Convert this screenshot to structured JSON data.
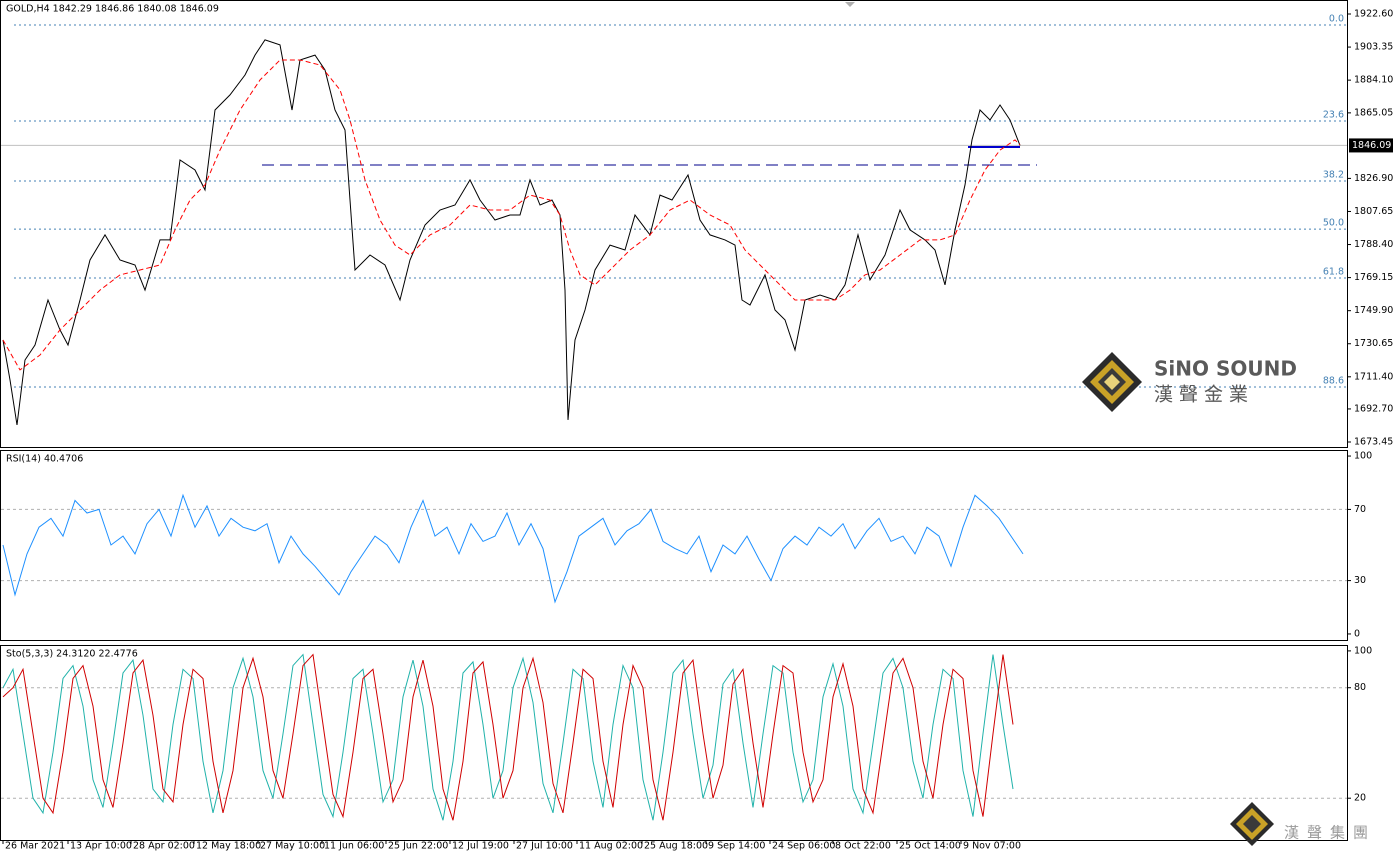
{
  "chart_data": [
    {
      "type": "line",
      "title": "GOLD,H4  1842.29 1846.86 1840.08 1846.09",
      "xlim": [
        0,
        1347
      ],
      "xticks": [
        {
          "value": 3,
          "label": "26 Mar 2021"
        },
        {
          "value": 68,
          "label": "13 Apr 10:00"
        },
        {
          "value": 131,
          "label": "28 Apr 02:00"
        },
        {
          "value": 194,
          "label": "12 May 18:00"
        },
        {
          "value": 258,
          "label": "27 May 10:00"
        },
        {
          "value": 322,
          "label": "11 Jun 06:00"
        },
        {
          "value": 386,
          "label": "25 Jun 22:00"
        },
        {
          "value": 450,
          "label": "12 Jul 19:00"
        },
        {
          "value": 514,
          "label": "27 Jul 10:00"
        },
        {
          "value": 577,
          "label": "11 Aug 02:00"
        },
        {
          "value": 642,
          "label": "25 Aug 18:00"
        },
        {
          "value": 706,
          "label": "9 Sep 14:00"
        },
        {
          "value": 770,
          "label": "24 Sep 06:00"
        },
        {
          "value": 833,
          "label": "8 Oct 22:00"
        },
        {
          "value": 897,
          "label": "25 Oct 14:00"
        },
        {
          "value": 961,
          "label": "9 Nov 07:00"
        }
      ],
      "ylim": [
        1670.54,
        1930.75
      ],
      "yticks": [
        {
          "value": 1922.6,
          "label": "1922.60"
        },
        1903.35,
        {
          "value": 1884.1,
          "label": "1884.10"
        },
        1865.05,
        {
          "value": 1826.9,
          "label": "1826.90"
        },
        1807.65,
        {
          "value": 1788.4,
          "label": "1788.40"
        },
        1769.15,
        {
          "value": 1749.9,
          "label": "1749.90"
        },
        1730.65,
        {
          "value": 1711.4,
          "label": "1711.40"
        },
        {
          "value": 1692.7,
          "label": "1692.70"
        },
        1673.45
      ],
      "current_price": 1846.09,
      "fib_levels": [
        {
          "label": "0.0",
          "value": 1916.2
        },
        {
          "label": "23.6",
          "value": 1860.3
        },
        {
          "label": "38.2",
          "value": 1825.4
        },
        {
          "label": "50.0",
          "value": 1797.4
        },
        {
          "label": "61.8",
          "value": 1768.9
        },
        {
          "label": "88.6",
          "value": 1705.5
        }
      ],
      "level_lines": [
        {
          "value": 1834.7,
          "x": [
            262,
            1037
          ],
          "color": "#00008b",
          "dash": true
        },
        {
          "value": 1845.2,
          "x": [
            968,
            1020
          ],
          "color": "#0000cd",
          "dash": false
        }
      ],
      "series": [
        {
          "color": "#000000",
          "dash": false,
          "x": [
            3,
            10,
            17,
            25,
            35,
            48,
            60,
            68,
            80,
            90,
            105,
            120,
            135,
            145,
            160,
            170,
            180,
            195,
            205,
            215,
            230,
            245,
            255,
            265,
            280,
            292,
            300,
            315,
            325,
            335,
            345,
            350,
            355,
            370,
            385,
            400,
            410,
            425,
            440,
            455,
            470,
            480,
            495,
            510,
            520,
            530,
            540,
            552,
            560,
            565,
            568,
            575,
            585,
            595,
            610,
            625,
            635,
            650,
            660,
            672,
            688,
            700,
            710,
            725,
            735,
            742,
            750,
            765,
            775,
            785,
            795,
            805,
            820,
            835,
            845,
            858,
            870,
            885,
            900,
            910,
            925,
            935,
            945,
            955,
            965,
            972,
            980,
            990,
            1000,
            1010,
            1020
          ],
          "values": [
            1732.8,
            1709.6,
            1683.4,
            1721.2,
            1729.9,
            1756.1,
            1738.7,
            1729.9,
            1756.1,
            1779.4,
            1794.0,
            1779.4,
            1776.5,
            1761.9,
            1791.1,
            1791.1,
            1837.6,
            1831.8,
            1820.2,
            1866.7,
            1875.5,
            1887.1,
            1898.7,
            1907.5,
            1904.6,
            1866.7,
            1895.8,
            1898.7,
            1890.0,
            1866.7,
            1855.1,
            1814.3,
            1773.6,
            1782.3,
            1776.5,
            1756.1,
            1779.4,
            1799.8,
            1808.5,
            1811.4,
            1826.0,
            1814.3,
            1802.7,
            1805.6,
            1805.6,
            1826.0,
            1811.4,
            1814.3,
            1805.6,
            1761.9,
            1686.3,
            1732.8,
            1750.3,
            1773.6,
            1788.1,
            1785.2,
            1805.6,
            1794.0,
            1817.2,
            1814.3,
            1828.9,
            1802.7,
            1794.0,
            1791.1,
            1788.1,
            1756.1,
            1753.2,
            1770.7,
            1750.3,
            1744.5,
            1727.0,
            1756.1,
            1759.0,
            1756.1,
            1764.9,
            1794.0,
            1767.8,
            1782.3,
            1808.5,
            1796.9,
            1791.1,
            1785.2,
            1764.9,
            1796.9,
            1823.1,
            1849.3,
            1866.7,
            1860.9,
            1869.6,
            1860.9,
            1846.09
          ]
        },
        {
          "color": "#ff0000",
          "dash": true,
          "x": [
            3,
            20,
            40,
            60,
            80,
            100,
            120,
            140,
            160,
            175,
            190,
            205,
            220,
            240,
            260,
            280,
            300,
            320,
            340,
            350,
            365,
            380,
            395,
            410,
            430,
            450,
            470,
            490,
            510,
            530,
            550,
            560,
            570,
            580,
            595,
            610,
            630,
            650,
            670,
            690,
            710,
            730,
            745,
            760,
            780,
            795,
            815,
            835,
            850,
            865,
            880,
            900,
            920,
            940,
            955,
            970,
            985,
            1000,
            1015,
            1020
          ],
          "values": [
            1732.8,
            1715.4,
            1724.1,
            1738.7,
            1750.3,
            1761.9,
            1770.7,
            1773.6,
            1776.5,
            1796.9,
            1814.3,
            1823.1,
            1843.4,
            1866.7,
            1884.2,
            1895.8,
            1895.8,
            1892.9,
            1878.4,
            1860.9,
            1826.0,
            1802.7,
            1788.1,
            1782.3,
            1794.0,
            1799.8,
            1811.4,
            1808.5,
            1808.5,
            1817.2,
            1814.3,
            1805.6,
            1785.2,
            1770.7,
            1764.9,
            1773.6,
            1785.2,
            1794.0,
            1808.5,
            1814.3,
            1805.6,
            1799.8,
            1785.2,
            1776.5,
            1764.9,
            1756.1,
            1756.1,
            1756.1,
            1761.9,
            1770.7,
            1773.6,
            1782.3,
            1791.1,
            1791.1,
            1794.0,
            1814.3,
            1831.8,
            1843.4,
            1849.3,
            1846.4
          ]
        }
      ]
    },
    {
      "type": "line",
      "title": "RSI(14) 40.4706",
      "ylim": [
        -3.4,
        103.4
      ],
      "yticks": [
        100,
        70,
        30,
        0
      ],
      "levels": [
        70,
        30
      ],
      "series": [
        {
          "color": "#1e90ff",
          "dash": false,
          "x": [
            3,
            15,
            27,
            39,
            51,
            63,
            75,
            87,
            99,
            111,
            123,
            135,
            147,
            159,
            171,
            183,
            195,
            207,
            219,
            231,
            243,
            255,
            267,
            279,
            291,
            303,
            315,
            327,
            339,
            351,
            363,
            375,
            387,
            399,
            411,
            423,
            435,
            447,
            459,
            471,
            483,
            495,
            507,
            519,
            531,
            543,
            555,
            567,
            579,
            591,
            603,
            615,
            627,
            639,
            651,
            663,
            675,
            687,
            699,
            711,
            723,
            735,
            747,
            759,
            771,
            783,
            795,
            807,
            819,
            831,
            843,
            855,
            867,
            879,
            891,
            903,
            915,
            927,
            939,
            951,
            963,
            975,
            987,
            999,
            1011,
            1023
          ],
          "values": [
            50,
            22,
            45,
            60,
            65,
            55,
            75,
            68,
            70,
            50,
            55,
            45,
            62,
            70,
            55,
            78,
            60,
            72,
            55,
            65,
            60,
            58,
            62,
            40,
            55,
            45,
            38,
            30,
            22,
            35,
            45,
            55,
            50,
            40,
            60,
            75,
            55,
            60,
            45,
            62,
            52,
            55,
            68,
            50,
            62,
            48,
            18,
            35,
            55,
            60,
            65,
            50,
            58,
            62,
            70,
            52,
            48,
            45,
            55,
            35,
            50,
            45,
            55,
            42,
            30,
            48,
            55,
            50,
            60,
            55,
            62,
            48,
            58,
            65,
            52,
            55,
            45,
            60,
            55,
            38,
            60,
            78,
            72,
            65,
            55,
            45
          ]
        }
      ]
    },
    {
      "type": "line",
      "title": "Sto(5,3,3) 24.3120 22.4776",
      "ylim": [
        -2.7,
        103.2
      ],
      "yticks": [
        100,
        80,
        20
      ],
      "levels": [
        80,
        20
      ],
      "series": [
        {
          "color": "#20b2aa",
          "dash": false,
          "x": [
            3,
            13,
            23,
            33,
            43,
            53,
            63,
            73,
            83,
            93,
            103,
            113,
            123,
            133,
            143,
            153,
            163,
            173,
            183,
            193,
            203,
            213,
            223,
            233,
            243,
            253,
            263,
            273,
            283,
            293,
            303,
            313,
            323,
            333,
            343,
            353,
            363,
            373,
            383,
            393,
            403,
            413,
            423,
            433,
            443,
            453,
            463,
            473,
            483,
            493,
            503,
            513,
            523,
            533,
            543,
            553,
            563,
            573,
            583,
            593,
            603,
            613,
            623,
            633,
            643,
            653,
            663,
            673,
            683,
            693,
            703,
            713,
            723,
            733,
            743,
            753,
            763,
            773,
            783,
            793,
            803,
            813,
            823,
            833,
            843,
            853,
            863,
            873,
            883,
            893,
            903,
            913,
            923,
            933,
            943,
            953,
            963,
            973,
            983,
            993,
            1003,
            1013
          ],
          "values": [
            80,
            90,
            55,
            20,
            12,
            45,
            85,
            92,
            70,
            30,
            15,
            50,
            88,
            95,
            65,
            25,
            18,
            60,
            90,
            85,
            40,
            12,
            35,
            80,
            96,
            75,
            35,
            20,
            55,
            92,
            98,
            60,
            22,
            10,
            45,
            85,
            90,
            55,
            18,
            30,
            75,
            95,
            70,
            25,
            8,
            40,
            88,
            94,
            60,
            20,
            35,
            80,
            96,
            72,
            28,
            12,
            50,
            90,
            85,
            40,
            15,
            60,
            92,
            80,
            30,
            8,
            45,
            88,
            95,
            55,
            20,
            38,
            82,
            90,
            50,
            15,
            55,
            92,
            88,
            45,
            18,
            30,
            75,
            93,
            70,
            25,
            12,
            50,
            88,
            96,
            80,
            40,
            20,
            60,
            90,
            85,
            35,
            10,
            55,
            98,
            60,
            25
          ]
        },
        {
          "color": "#d00000",
          "dash": false,
          "x": [
            3,
            13,
            23,
            33,
            43,
            53,
            63,
            73,
            83,
            93,
            103,
            113,
            123,
            133,
            143,
            153,
            163,
            173,
            183,
            193,
            203,
            213,
            223,
            233,
            243,
            253,
            263,
            273,
            283,
            293,
            303,
            313,
            323,
            333,
            343,
            353,
            363,
            373,
            383,
            393,
            403,
            413,
            423,
            433,
            443,
            453,
            463,
            473,
            483,
            493,
            503,
            513,
            523,
            533,
            543,
            553,
            563,
            573,
            583,
            593,
            603,
            613,
            623,
            633,
            643,
            653,
            663,
            673,
            683,
            693,
            703,
            713,
            723,
            733,
            743,
            753,
            763,
            773,
            783,
            793,
            803,
            813,
            823,
            833,
            843,
            853,
            863,
            873,
            883,
            893,
            903,
            913,
            923,
            933,
            943,
            953,
            963,
            973,
            983,
            993,
            1003,
            1013
          ],
          "values": [
            75,
            80,
            90,
            55,
            20,
            12,
            45,
            85,
            92,
            70,
            30,
            15,
            50,
            88,
            95,
            65,
            25,
            18,
            60,
            90,
            85,
            40,
            12,
            35,
            80,
            96,
            75,
            35,
            20,
            55,
            92,
            98,
            60,
            22,
            10,
            45,
            85,
            90,
            55,
            18,
            30,
            75,
            95,
            70,
            25,
            8,
            40,
            88,
            94,
            60,
            20,
            35,
            80,
            96,
            72,
            28,
            12,
            50,
            90,
            85,
            40,
            15,
            60,
            92,
            80,
            30,
            8,
            45,
            88,
            95,
            55,
            20,
            38,
            82,
            90,
            50,
            15,
            55,
            92,
            88,
            45,
            18,
            30,
            75,
            93,
            70,
            25,
            12,
            50,
            88,
            96,
            80,
            40,
            20,
            60,
            90,
            85,
            35,
            10,
            55,
            98,
            60
          ]
        }
      ]
    }
  ],
  "watermark": {
    "brand": "SiNO SOUND",
    "chinese": "漢聲金業",
    "footer": "漢聲集團"
  }
}
